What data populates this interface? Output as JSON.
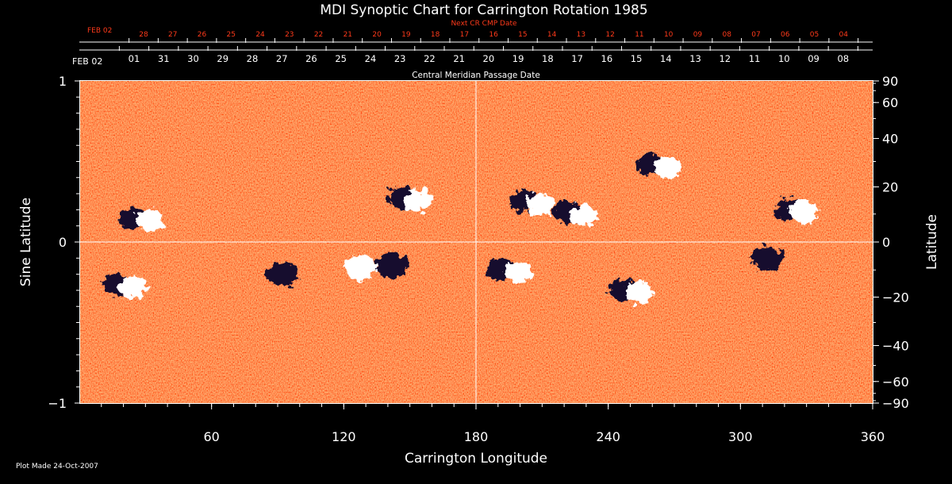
{
  "chart_data": {
    "type": "heatmap",
    "title": "MDI Synoptic Chart for Carrington Rotation 1985",
    "xlabel": "Carrington Longitude",
    "ylabel_left": "Sine Latitude",
    "ylabel_right": "Latitude",
    "xlim": [
      0,
      360
    ],
    "ylim": [
      -1,
      1
    ],
    "x_ticks": [
      60,
      120,
      180,
      240,
      300,
      360
    ],
    "y_ticks_left": [
      {
        "value": 1,
        "label": "1"
      },
      {
        "value": 0,
        "label": "0"
      },
      {
        "value": -1,
        "label": "−1"
      }
    ],
    "y_ticks_right_deg": [
      {
        "deg": 90,
        "label": "90"
      },
      {
        "deg": 60,
        "label": "60"
      },
      {
        "deg": 40,
        "label": "40"
      },
      {
        "deg": 20,
        "label": "20"
      },
      {
        "deg": 0,
        "label": "0"
      },
      {
        "deg": -20,
        "label": "−20"
      },
      {
        "deg": -40,
        "label": "−40"
      },
      {
        "deg": -60,
        "label": "−60"
      },
      {
        "deg": -90,
        "label": "−90"
      }
    ],
    "grid_lines": {
      "x": [
        180
      ],
      "y": [
        0
      ]
    },
    "cmp_axis": {
      "label": "Central Meridian Passage Date",
      "start_label": "FEB 02",
      "dates": [
        "01",
        "31",
        "30",
        "29",
        "28",
        "27",
        "26",
        "25",
        "24",
        "23",
        "22",
        "21",
        "20",
        "19",
        "18",
        "17",
        "16",
        "15",
        "14",
        "13",
        "12",
        "11",
        "10",
        "09",
        "08"
      ]
    },
    "next_cr_axis": {
      "label": "Next CR CMP Date",
      "start_label": "FEB 02",
      "dates": [
        "28",
        "27",
        "26",
        "25",
        "24",
        "23",
        "22",
        "21",
        "20",
        "19",
        "18",
        "17",
        "16",
        "15",
        "14",
        "13",
        "12",
        "11",
        "10",
        "09",
        "08",
        "07",
        "06",
        "05",
        "04"
      ]
    },
    "colormap": {
      "background": "#ff6a1e",
      "positive": "#ffffff",
      "negative": "#1a0a3a"
    },
    "active_regions": [
      {
        "lon": 28,
        "sinlat": 0.15,
        "polarity": "bipolar"
      },
      {
        "lon": 20,
        "sinlat": -0.27,
        "polarity": "bipolar"
      },
      {
        "lon": 92,
        "sinlat": -0.2,
        "polarity": "negative"
      },
      {
        "lon": 128,
        "sinlat": -0.16,
        "polarity": "positive"
      },
      {
        "lon": 150,
        "sinlat": 0.27,
        "polarity": "bipolar"
      },
      {
        "lon": 142,
        "sinlat": -0.15,
        "polarity": "negative"
      },
      {
        "lon": 205,
        "sinlat": 0.25,
        "polarity": "bipolar"
      },
      {
        "lon": 225,
        "sinlat": 0.18,
        "polarity": "bipolar"
      },
      {
        "lon": 263,
        "sinlat": 0.48,
        "polarity": "bipolar"
      },
      {
        "lon": 325,
        "sinlat": 0.2,
        "polarity": "bipolar"
      },
      {
        "lon": 312,
        "sinlat": -0.1,
        "polarity": "negative"
      },
      {
        "lon": 195,
        "sinlat": -0.17,
        "polarity": "bipolar"
      },
      {
        "lon": 250,
        "sinlat": -0.3,
        "polarity": "bipolar"
      }
    ]
  },
  "footer": {
    "plot_made": "Plot Made 24-Oct-2007"
  }
}
